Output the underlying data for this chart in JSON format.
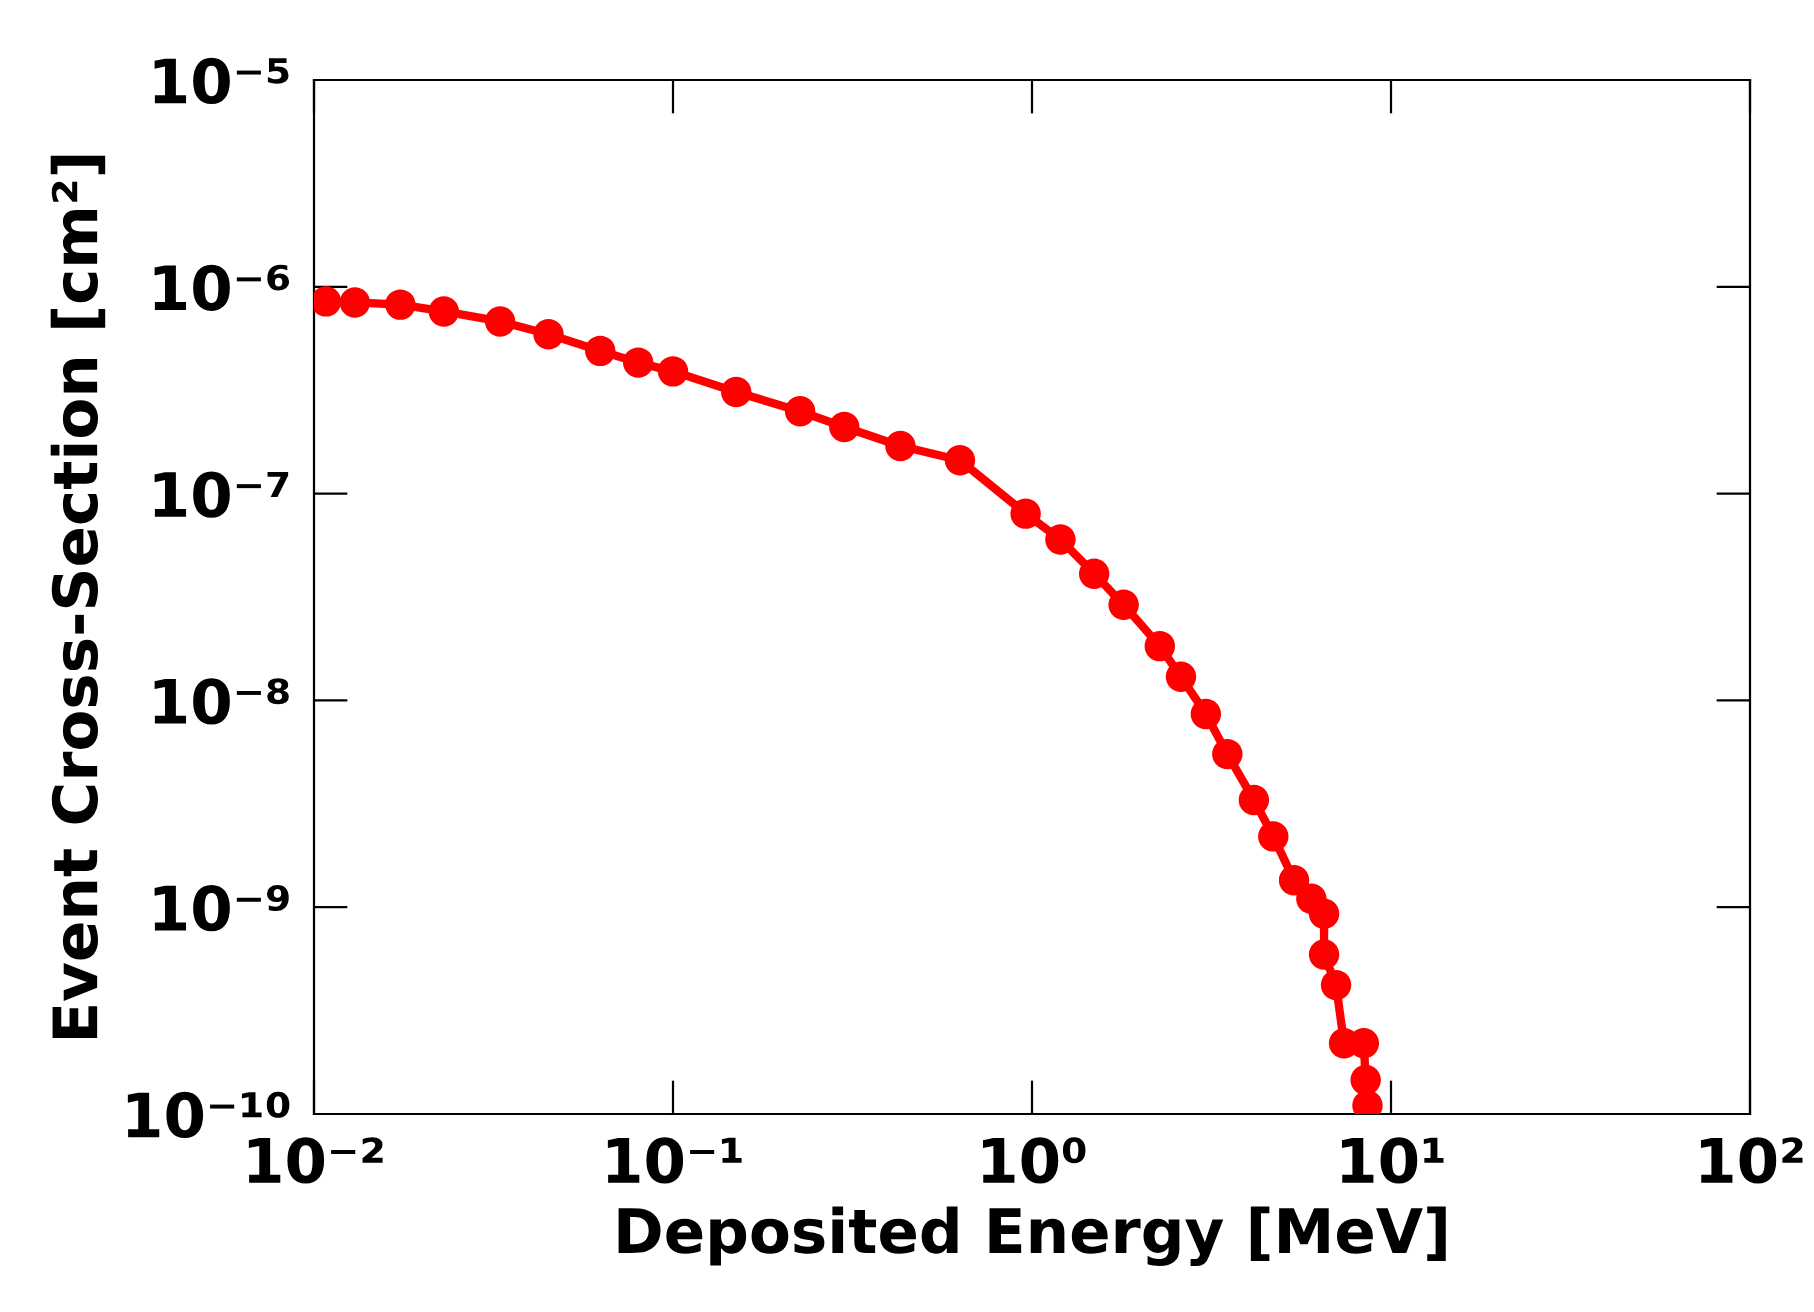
{
  "chart_data": {
    "type": "line",
    "xlabel": "Deposited Energy [MeV]",
    "ylabel": "Event Cross-Section [cm²]",
    "log": "xy",
    "grid": false,
    "legend": false,
    "marker": "circle",
    "line_style": "solid",
    "xlim": [
      0.01,
      100
    ],
    "ylim": [
      1e-10,
      1e-05
    ],
    "xticks": [
      {
        "value": 0.01,
        "label": "10⁻²"
      },
      {
        "value": 0.1,
        "label": "10⁻¹"
      },
      {
        "value": 1,
        "label": "10⁰"
      },
      {
        "value": 10,
        "label": "10¹"
      },
      {
        "value": 100,
        "label": "10²"
      }
    ],
    "yticks": [
      {
        "value": 1e-10,
        "label": "10⁻¹⁰"
      },
      {
        "value": 1e-09,
        "label": "10⁻⁹"
      },
      {
        "value": 1e-08,
        "label": "10⁻⁸"
      },
      {
        "value": 1e-07,
        "label": "10⁻⁷"
      },
      {
        "value": 1e-06,
        "label": "10⁻⁶"
      },
      {
        "value": 1e-05,
        "label": "10⁻⁵"
      }
    ],
    "series": [
      {
        "color": "#ff0000",
        "x": [
          0.0108,
          0.013,
          0.0174,
          0.023,
          0.033,
          0.045,
          0.0627,
          0.08,
          0.1,
          0.15,
          0.226,
          0.3,
          0.43,
          0.63,
          0.96,
          1.2,
          1.49,
          1.8,
          2.27,
          2.6,
          3.05,
          3.5,
          4.15,
          4.7,
          5.37,
          6.0,
          6.51,
          6.51,
          7.03,
          7.4,
          8.4,
          8.5,
          8.6
        ],
        "values": [
          8.5e-07,
          8.4e-07,
          8.2e-07,
          7.6e-07,
          6.8e-07,
          5.9e-07,
          4.9e-07,
          4.3e-07,
          3.9e-07,
          3.1e-07,
          2.5e-07,
          2.1e-07,
          1.7e-07,
          1.45e-07,
          8e-08,
          6e-08,
          4.1e-08,
          2.9e-08,
          1.83e-08,
          1.3e-08,
          8.6e-09,
          5.5e-09,
          3.3e-09,
          2.2e-09,
          1.35e-09,
          1.1e-09,
          9.3e-10,
          5.9e-10,
          4.2e-10,
          2.2e-10,
          2.2e-10,
          1.46e-10,
          1.1e-10
        ]
      }
    ]
  }
}
